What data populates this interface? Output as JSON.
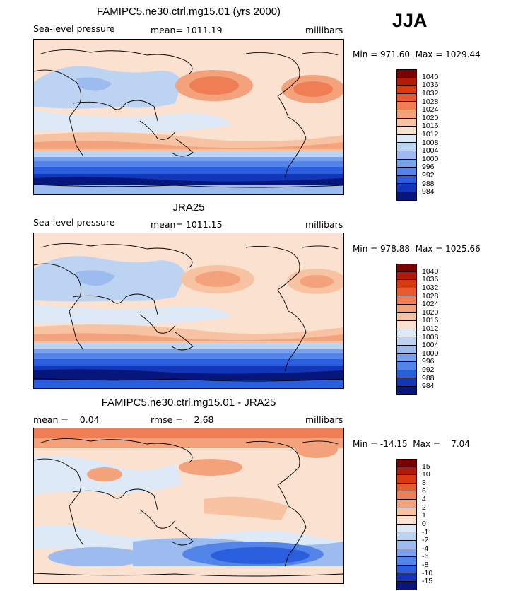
{
  "season": "JJA",
  "panels": [
    {
      "title": "FAMIPC5.ne30.ctrl.mg15.01 (yrs 2000)",
      "left_label": "Sea-level pressure",
      "center_label": "mean= 1011.19",
      "right_label": "millibars",
      "stats": "Min = 971.60  Max = 1029.44",
      "colorbar_labels": [
        "1040",
        "1036",
        "1032",
        "1028",
        "1024",
        "1020",
        "1016",
        "1012",
        "1008",
        "1004",
        "1000",
        "996",
        "992",
        "988",
        "984"
      ]
    },
    {
      "title": "JRA25",
      "left_label": "Sea-level pressure",
      "center_label": "mean= 1011.15",
      "right_label": "millibars",
      "stats": "Min = 978.88  Max = 1025.66",
      "colorbar_labels": [
        "1040",
        "1036",
        "1032",
        "1028",
        "1024",
        "1020",
        "1016",
        "1012",
        "1008",
        "1004",
        "1000",
        "996",
        "992",
        "988",
        "984"
      ]
    },
    {
      "title": "FAMIPC5.ne30.ctrl.mg15.01 - JRA25",
      "left_label": "mean =    0.04",
      "center_label": "rmse =    2.68",
      "right_label": "millibars",
      "stats": "Min = -14.15  Max =    7.04",
      "colorbar_labels": [
        "15",
        "10",
        "8",
        "6",
        "4",
        "2",
        "1",
        "0",
        "-1",
        "-2",
        "-4",
        "-6",
        "-8",
        "-10",
        "-15"
      ]
    }
  ],
  "colors": {
    "scale16": [
      "#7a0000",
      "#b21a0a",
      "#d83a14",
      "#e85a30",
      "#f07e55",
      "#f4a27c",
      "#f8c3a3",
      "#fbe1cf",
      "#dde9f6",
      "#bcd3f2",
      "#9cbbef",
      "#7aa2ec",
      "#5384e8",
      "#2a5edc",
      "#1136b8",
      "#07167a"
    ],
    "land_line": "#000000"
  }
}
